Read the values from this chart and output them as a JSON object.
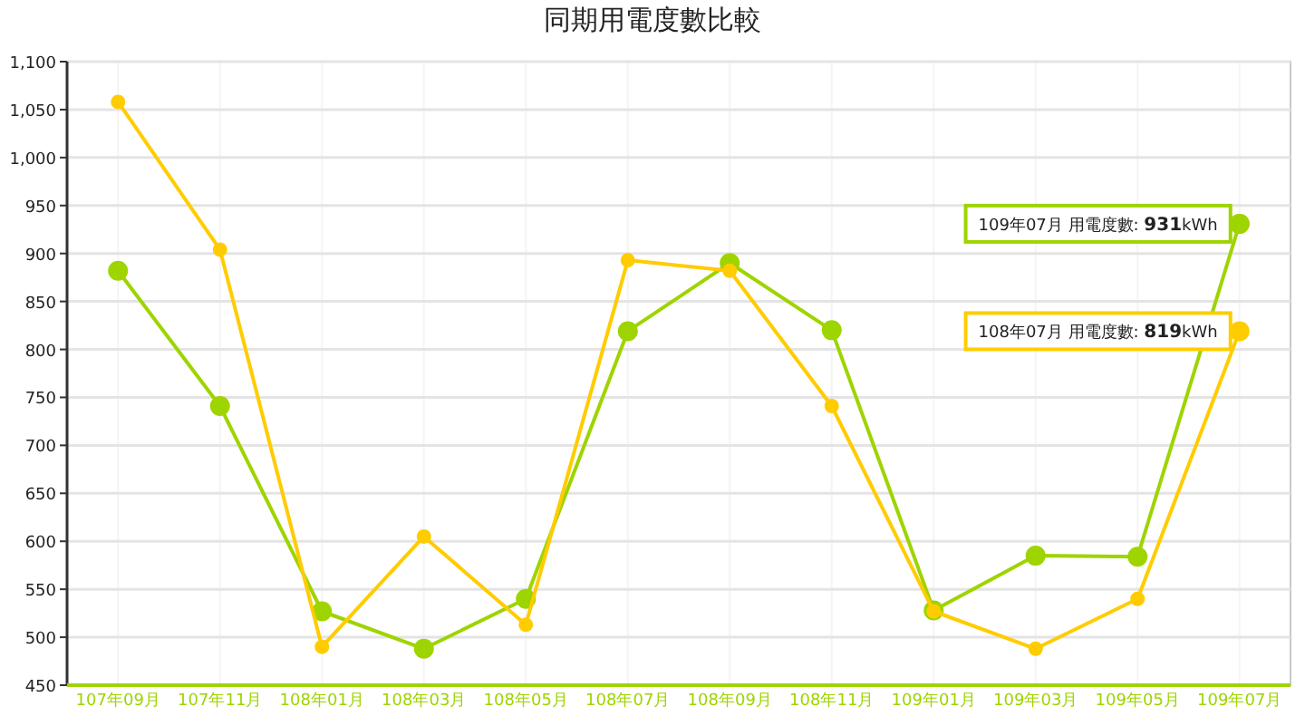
{
  "chart_data": {
    "type": "line",
    "title": "同期用電度數比較",
    "categories": [
      "107年09月",
      "107年11月",
      "108年01月",
      "108年03月",
      "108年05月",
      "108年07月",
      "108年09月",
      "108年11月",
      "109年01月",
      "109年03月",
      "109年05月",
      "109年07月"
    ],
    "series": [
      {
        "color": "#9ed400",
        "values": [
          882,
          741,
          527,
          488,
          540,
          819,
          890,
          820,
          528,
          585,
          584,
          931
        ]
      },
      {
        "color": "#ffcc00",
        "values": [
          1058,
          904,
          490,
          605,
          513,
          893,
          882,
          741,
          527,
          488,
          540,
          819
        ]
      }
    ],
    "ylim": [
      450,
      1100
    ],
    "yticks": [
      450,
      500,
      550,
      600,
      650,
      700,
      750,
      800,
      850,
      900,
      950,
      {
        "value": 1000,
        "label": "1,000"
      },
      {
        "value": 1050,
        "label": "1,050"
      },
      {
        "value": 1100,
        "label": "1,100"
      }
    ],
    "grid": true,
    "marker": "circle",
    "annotations": [
      {
        "text": "109年07月 用電度數: **931**kWh",
        "x": "109年07月",
        "y": 931
      },
      {
        "text": "108年07月 用電度數: **819**kWh",
        "x": "109年07月",
        "y": 819
      }
    ]
  }
}
